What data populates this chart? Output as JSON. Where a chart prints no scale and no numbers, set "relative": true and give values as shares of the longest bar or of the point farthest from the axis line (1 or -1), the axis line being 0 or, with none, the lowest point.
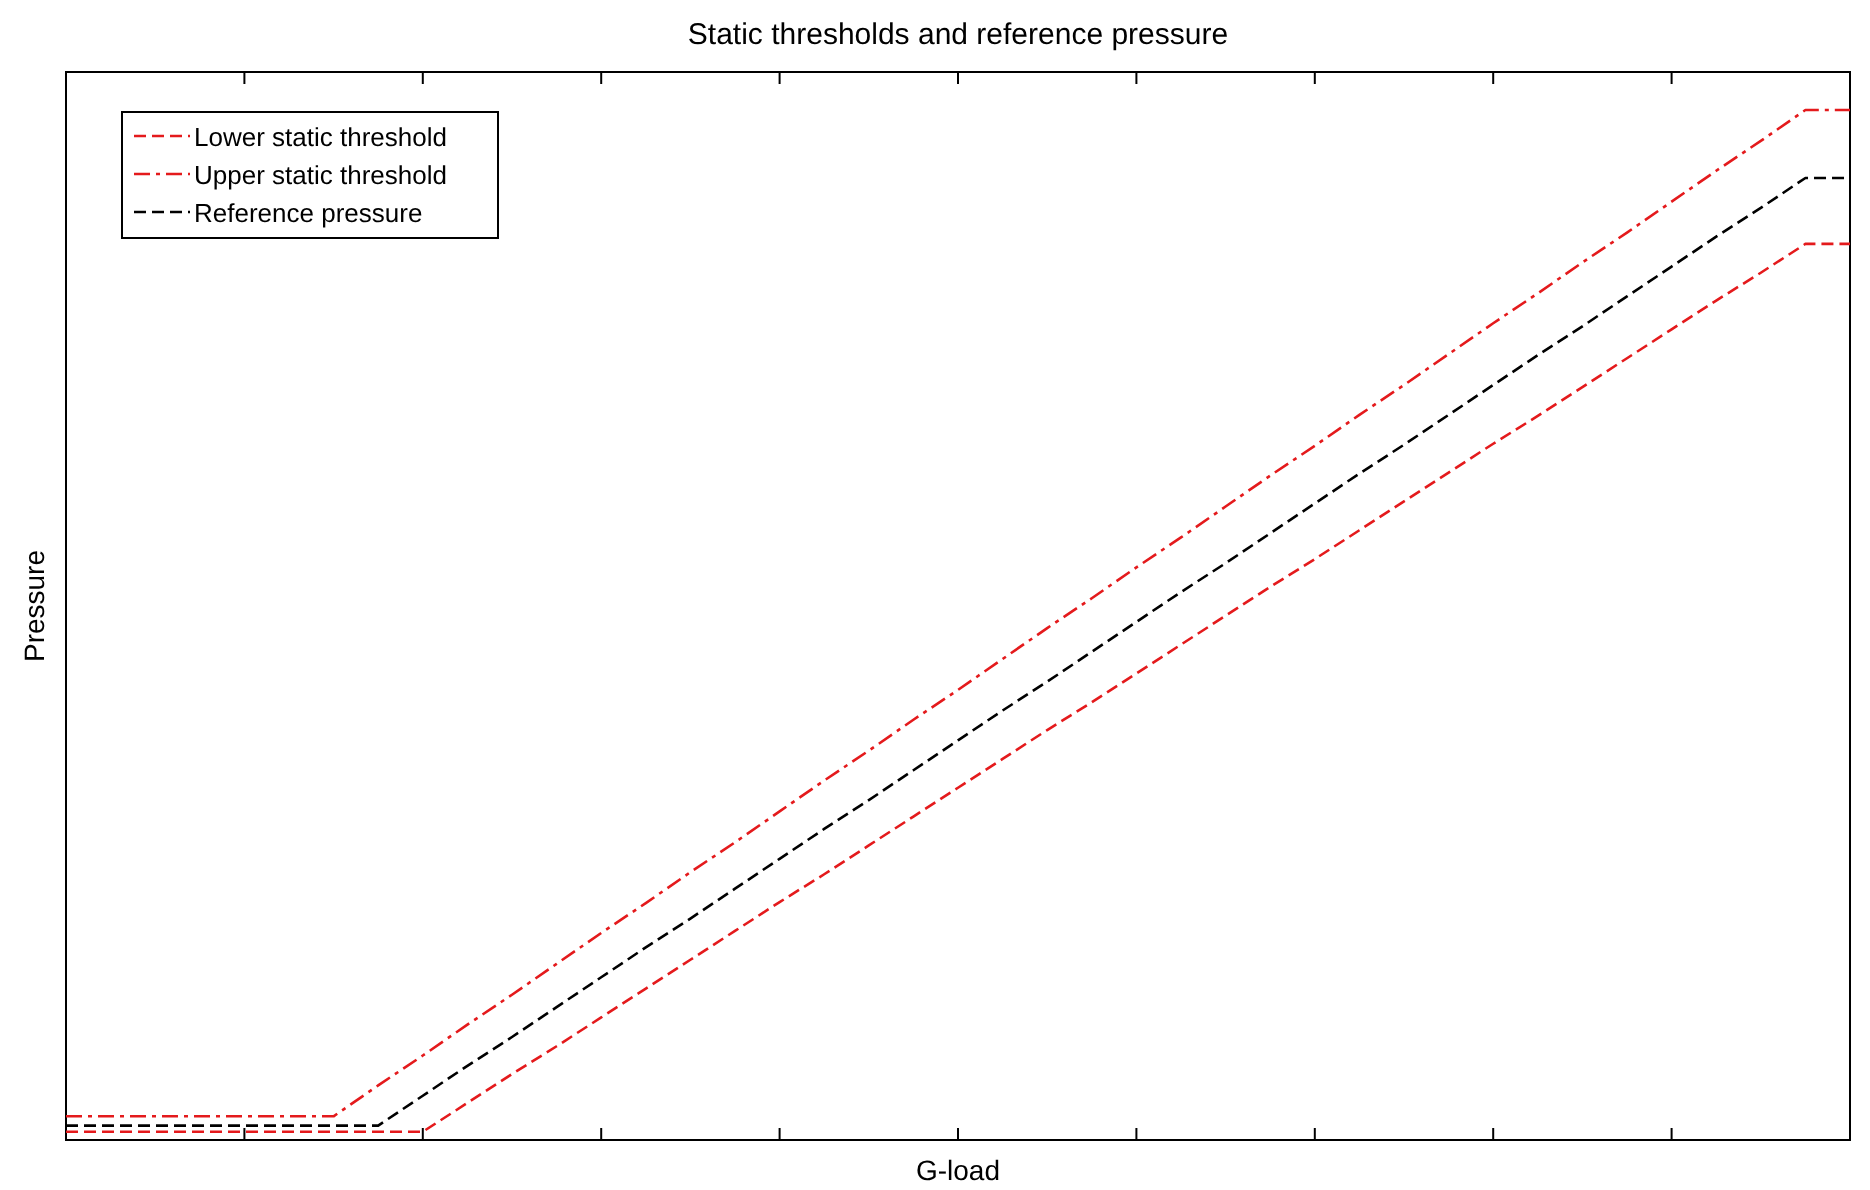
{
  "chart_data": {
    "type": "line",
    "title": "Static thresholds and reference pressure",
    "xlabel": "G-load",
    "ylabel": "Pressure",
    "relative": true,
    "legend": "top left",
    "grid": false,
    "marker": "none",
    "categories": [
      null,
      null,
      null,
      null,
      null,
      null,
      null,
      null,
      null,
      null,
      null,
      null,
      null,
      null,
      null,
      null,
      null,
      null,
      null,
      null,
      null,
      null,
      null,
      null,
      null,
      null,
      null,
      null,
      null,
      null,
      null,
      null,
      null,
      null,
      null,
      null,
      null,
      null,
      null,
      null,
      null
    ],
    "series": [
      {
        "name": "Lower static threshold",
        "color": "#e41a1c",
        "line_style": "dashed",
        "values": [
          0.008,
          0.008,
          0.008,
          0.008,
          0.008,
          0.008,
          0.008,
          0.008,
          0.008,
          0.036,
          0.064,
          0.091,
          0.119,
          0.147,
          0.175,
          0.203,
          0.231,
          0.258,
          0.286,
          0.314,
          0.342,
          0.37,
          0.398,
          0.425,
          0.453,
          0.481,
          0.509,
          0.537,
          0.564,
          0.592,
          0.62,
          0.648,
          0.676,
          0.703,
          0.731,
          0.759,
          0.787,
          0.815,
          0.842,
          0.87,
          0.87
        ]
      },
      {
        "name": "Upper static threshold",
        "color": "#e41a1c",
        "line_style": "dashdot",
        "values": [
          0.023,
          0.023,
          0.023,
          0.023,
          0.023,
          0.023,
          0.023,
          0.053,
          0.082,
          0.112,
          0.141,
          0.171,
          0.201,
          0.23,
          0.26,
          0.289,
          0.319,
          0.349,
          0.378,
          0.408,
          0.437,
          0.467,
          0.497,
          0.526,
          0.556,
          0.585,
          0.615,
          0.645,
          0.674,
          0.704,
          0.733,
          0.763,
          0.793,
          0.822,
          0.852,
          0.881,
          0.911,
          0.941,
          0.97,
          1,
          1
        ]
      },
      {
        "name": "Reference pressure",
        "color": "#000000",
        "line_style": "dashed",
        "values": [
          0.014,
          0.014,
          0.014,
          0.014,
          0.014,
          0.014,
          0.014,
          0.014,
          0.043,
          0.072,
          0.1,
          0.129,
          0.158,
          0.187,
          0.215,
          0.244,
          0.273,
          0.302,
          0.33,
          0.359,
          0.388,
          0.417,
          0.445,
          0.474,
          0.503,
          0.532,
          0.56,
          0.589,
          0.618,
          0.647,
          0.675,
          0.704,
          0.733,
          0.762,
          0.79,
          0.819,
          0.848,
          0.877,
          0.905,
          0.934,
          0.934
        ]
      }
    ]
  }
}
